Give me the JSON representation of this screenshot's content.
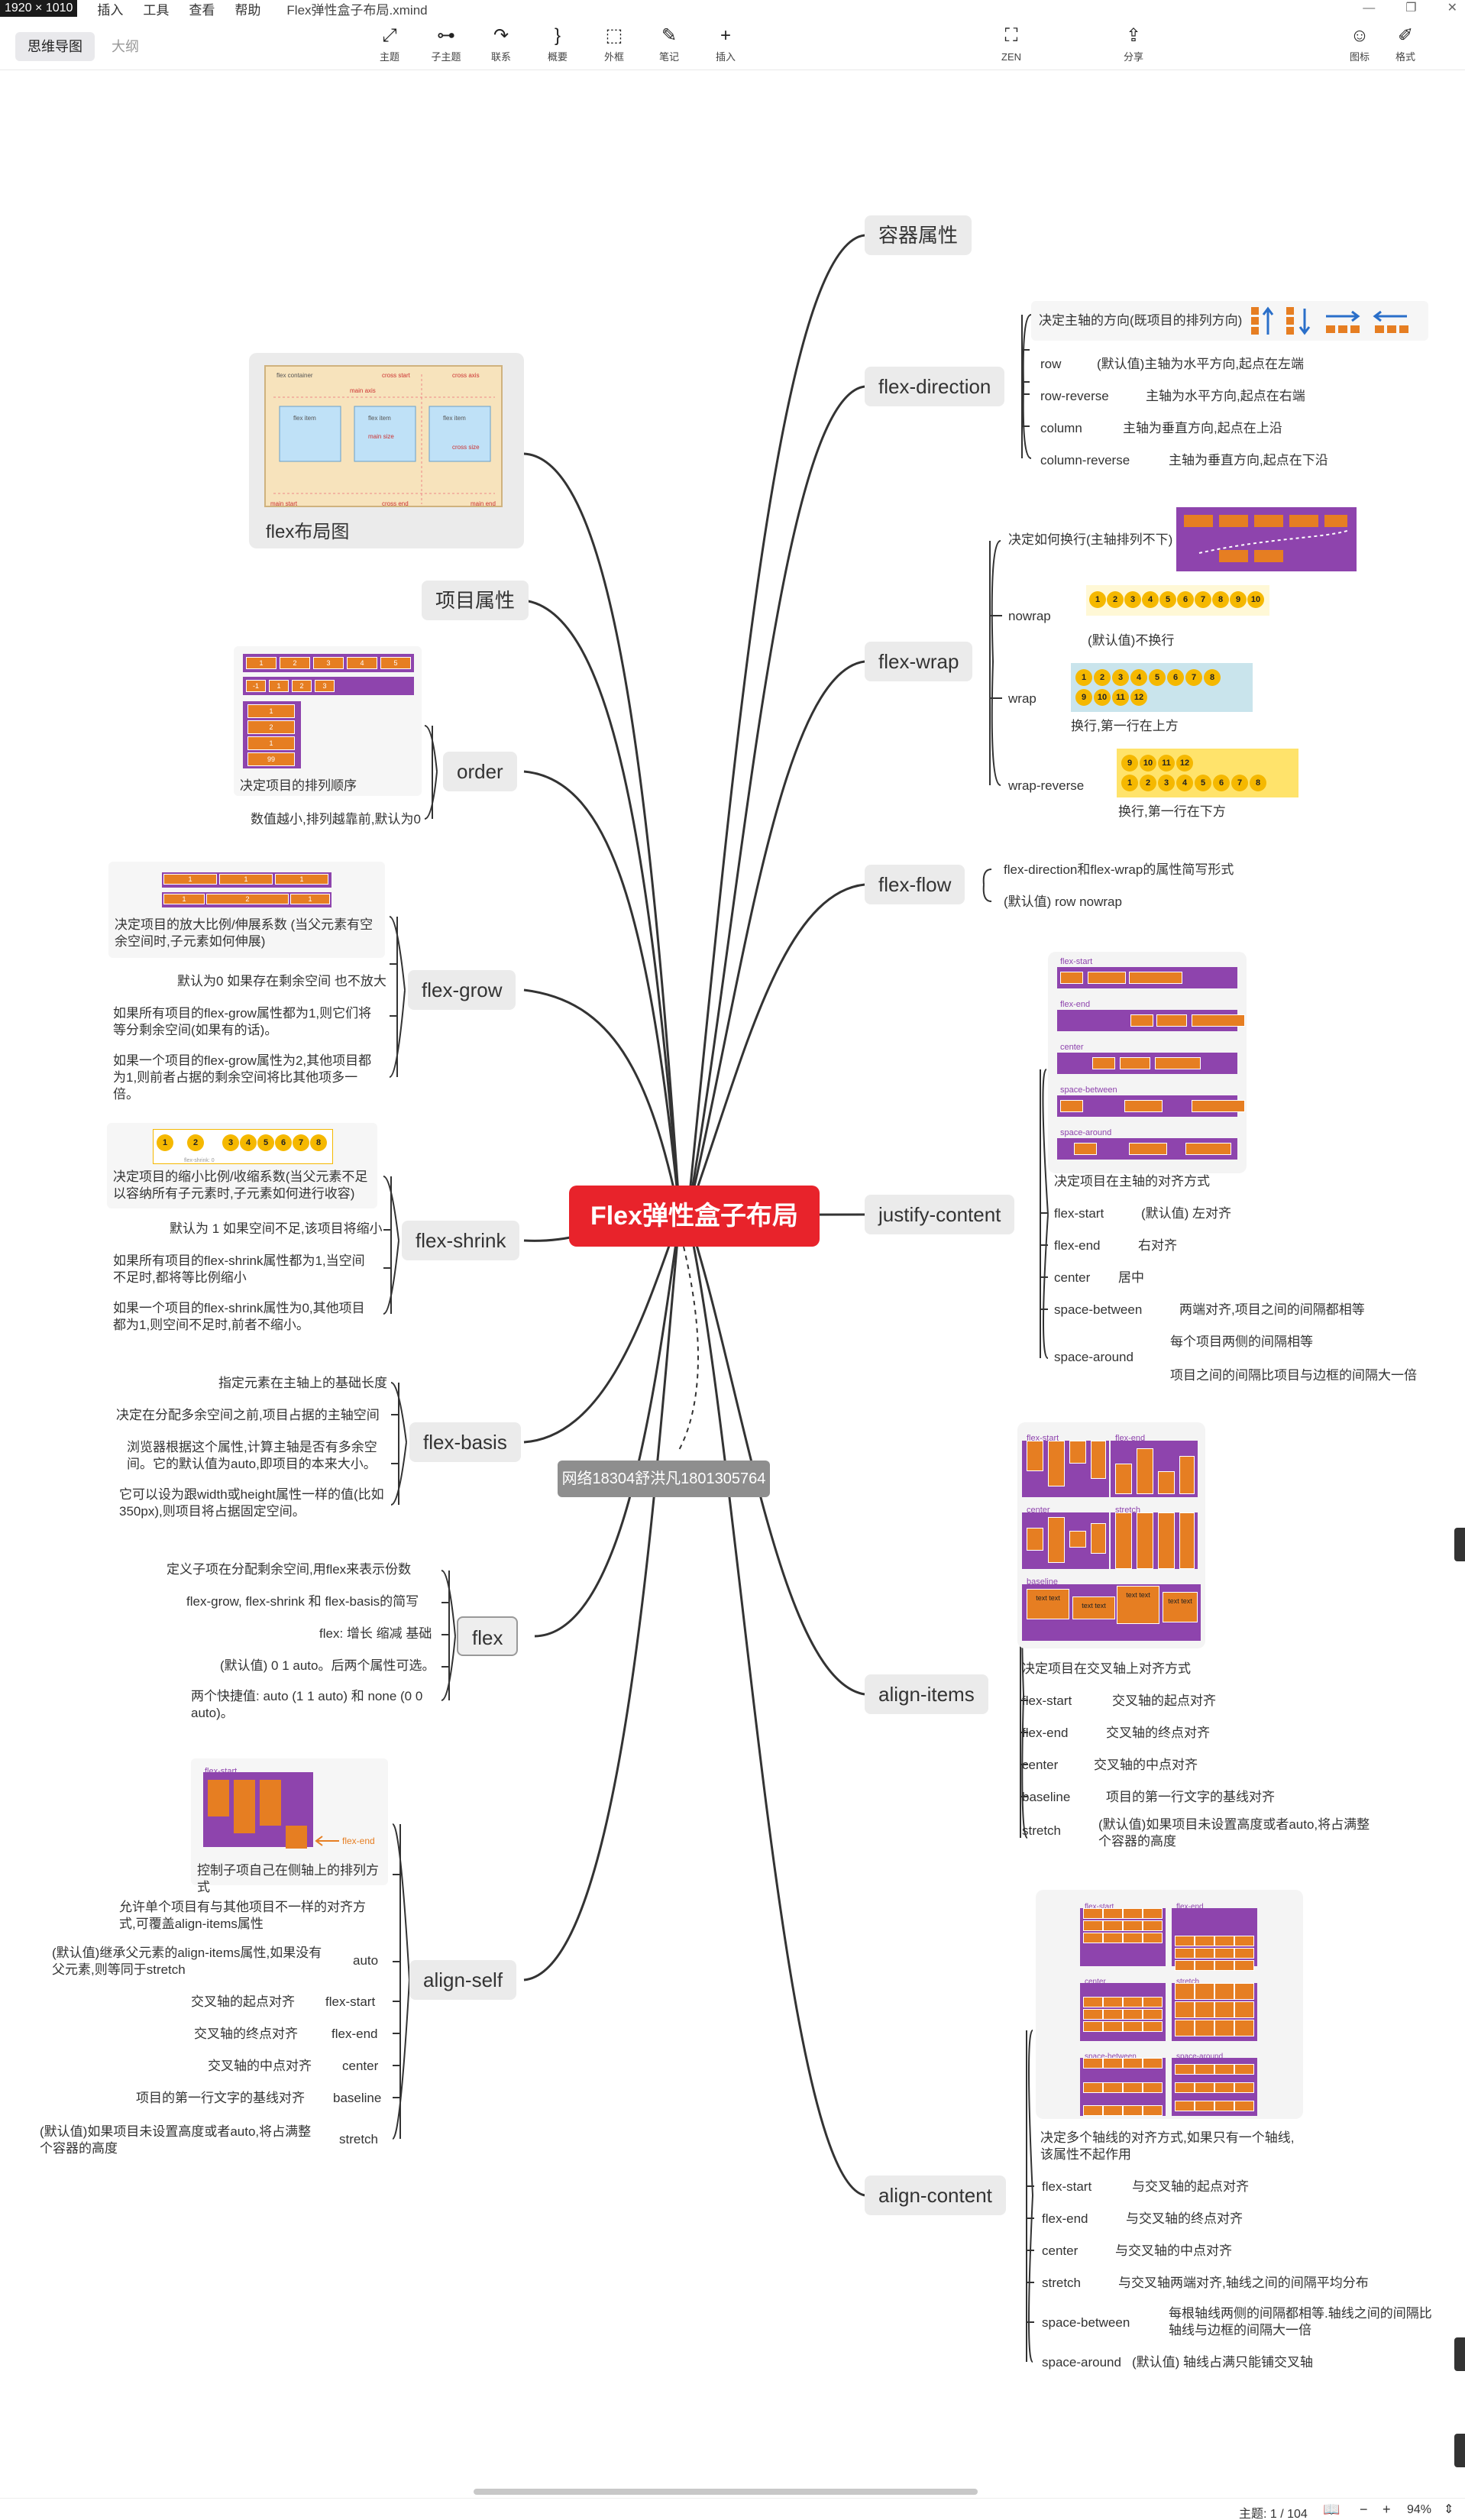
{
  "window": {
    "resolution": "1920 × 1010",
    "file_name": "Flex弹性盒子布局.xmind",
    "menus": [
      "插入",
      "工具",
      "查看",
      "帮助"
    ],
    "controls": [
      "—",
      "❐",
      "✕"
    ]
  },
  "toolbar": {
    "view_tabs": [
      "思维导图",
      "大纲"
    ],
    "tools": [
      {
        "name": "topic",
        "label": "主题",
        "icon": "⤢"
      },
      {
        "name": "subtopic",
        "label": "子主题",
        "icon": "⊶"
      },
      {
        "name": "relation",
        "label": "联系",
        "icon": "↷"
      },
      {
        "name": "summary",
        "label": "概要",
        "icon": "}"
      },
      {
        "name": "boundary",
        "label": "外框",
        "icon": "⬚"
      },
      {
        "name": "note",
        "label": "笔记",
        "icon": "✎"
      },
      {
        "name": "insert",
        "label": "插入",
        "icon": "+"
      },
      {
        "name": "zen",
        "label": "ZEN",
        "icon": "⛶"
      },
      {
        "name": "share",
        "label": "分享",
        "icon": "⇪"
      },
      {
        "name": "icon",
        "label": "图标",
        "icon": "☺"
      },
      {
        "name": "format",
        "label": "格式",
        "icon": "✐"
      }
    ]
  },
  "mindmap": {
    "central": "Flex弹性盒子布局",
    "watermark": "网络18304舒洪凡1801305764",
    "right": {
      "container_title": "容器属性",
      "flex_direction": {
        "title": "flex-direction",
        "desc": "决定主轴的方向(既项目的排列方向)",
        "items": [
          [
            "row",
            "(默认值)主轴为水平方向,起点在左端"
          ],
          [
            "row-reverse",
            "主轴为水平方向,起点在右端"
          ],
          [
            "column",
            "主轴为垂直方向,起点在上沿"
          ],
          [
            "column-reverse",
            "主轴为垂直方向,起点在下沿"
          ]
        ]
      },
      "flex_wrap": {
        "title": "flex-wrap",
        "desc": "决定如何换行(主轴排列不下)",
        "nowrap": "nowrap",
        "nowrap_note": "(默认值)不换行",
        "wrap": "wrap",
        "wrap_note": "换行,第一行在上方",
        "wrap_reverse": "wrap-reverse",
        "wrap_reverse_note": "换行,第一行在下方",
        "balls": [
          "1",
          "2",
          "3",
          "4",
          "5",
          "6",
          "7",
          "8",
          "9",
          "10",
          "11",
          "12"
        ]
      },
      "flex_flow": {
        "title": "flex-flow",
        "items": [
          "flex-direction和flex-wrap的属性简写形式",
          "(默认值) row nowrap"
        ]
      },
      "justify_content": {
        "title": "justify-content",
        "img_labels": [
          "flex-start",
          "flex-end",
          "center",
          "space-between",
          "space-around"
        ],
        "desc": "决定项目在主轴的对齐方式",
        "items": [
          [
            "flex-start",
            "(默认值) 左对齐"
          ],
          [
            "flex-end",
            "右对齐"
          ],
          [
            "center",
            "居中"
          ],
          [
            "space-between",
            "两端对齐,项目之间的间隔都相等"
          ],
          [
            "space-around",
            ""
          ]
        ],
        "around_notes": [
          "每个项目两侧的间隔相等",
          "项目之间的间隔比项目与边框的间隔大一倍"
        ]
      },
      "align_items": {
        "title": "align-items",
        "img_labels": [
          "flex-start",
          "flex-end",
          "center",
          "stretch",
          "baseline"
        ],
        "text_samples": [
          "text text",
          "text text",
          "text text",
          "text text"
        ],
        "desc": "决定项目在交叉轴上对齐方式",
        "items": [
          [
            "flex-start",
            "交叉轴的起点对齐"
          ],
          [
            "flex-end",
            "交叉轴的终点对齐"
          ],
          [
            "center",
            "交叉轴的中点对齐"
          ],
          [
            "baseline",
            "项目的第一行文字的基线对齐"
          ],
          [
            "stretch",
            "(默认值)如果项目未设置高度或者auto,将占满整个容器的高度"
          ]
        ]
      },
      "align_content": {
        "title": "align-content",
        "img_labels": [
          "flex-start",
          "flex-end",
          "center",
          "stretch",
          "space-between",
          "space-around"
        ],
        "desc": "决定多个轴线的对齐方式,如果只有一个轴线,该属性不起作用",
        "items": [
          [
            "flex-start",
            "与交叉轴的起点对齐"
          ],
          [
            "flex-end",
            "与交叉轴的终点对齐"
          ],
          [
            "center",
            "与交叉轴的中点对齐"
          ],
          [
            "stretch",
            "与交叉轴两端对齐,轴线之间的间隔平均分布"
          ],
          [
            "space-between",
            "每根轴线两侧的间隔都相等.轴线之间的间隔比轴线与边框的间隔大一倍"
          ],
          [
            "space-around",
            "(默认值) 轴线占满只能铺交叉轴"
          ]
        ]
      }
    },
    "left": {
      "flex_layout": {
        "title": "flex布局图",
        "diagram_labels": [
          "flex container",
          "main start",
          "main axis",
          "main end",
          "cross start",
          "cross end",
          "cross axis",
          "flex item",
          "flex item",
          "flex item",
          "main size",
          "cross size"
        ]
      },
      "item_title": "项目属性",
      "order": {
        "title": "order",
        "items": [
          "决定项目的排列顺序",
          "数值越小,排列越靠前,默认为0"
        ],
        "blocks": [
          "1",
          "2",
          "3",
          "4",
          "5",
          "-1",
          "1",
          "2",
          "3",
          "1",
          "2",
          "99"
        ]
      },
      "flex_grow": {
        "title": "flex-grow",
        "blocks": [
          "1",
          "1",
          "1",
          "1",
          "2",
          "1"
        ],
        "items": [
          "决定项目的放大比例/伸展系数 (当父元素有空余空间时,子元素如何伸展)",
          "默认为0 如果存在剩余空间 也不放大",
          "如果所有项目的flex-grow属性都为1,则它们将等分剩余空间(如果有的话)。",
          "如果一个项目的flex-grow属性为2,其他项目都为1,则前者占据的剩余空间将比其他项多一倍。"
        ]
      },
      "flex_shrink": {
        "title": "flex-shrink",
        "shrink_note": "flex-shrink: 0",
        "items": [
          "决定项目的缩小比例/收缩系数(当父元素不足以容纳所有子元素时,子元素如何进行收容)",
          "默认为 1 如果空间不足,该项目将缩小",
          "如果所有项目的flex-shrink属性都为1,当空间不足时,都将等比例缩小",
          "如果一个项目的flex-shrink属性为0,其他项目都为1,则空间不足时,前者不缩小。"
        ]
      },
      "flex_basis": {
        "title": "flex-basis",
        "items": [
          "指定元素在主轴上的基础长度",
          "决定在分配多余空间之前,项目占据的主轴空间",
          "浏览器根据这个属性,计算主轴是否有多余空间。它的默认值为auto,即项目的本来大小。",
          "它可以设为跟width或height属性一样的值(比如350px),则项目将占据固定空间。"
        ]
      },
      "flex": {
        "title": "flex",
        "items": [
          "定义子项在分配剩余空间,用flex来表示份数",
          "flex-grow, flex-shrink 和 flex-basis的简写",
          "flex: 增长 缩减 基础",
          "(默认值) 0 1 auto。后两个属性可选。",
          "两个快捷值: auto (1 1 auto) 和 none (0 0 auto)。"
        ]
      },
      "align_self": {
        "title": "align-self",
        "img_labels": [
          "flex-start",
          "flex-end"
        ],
        "desc": "控制子项自己在侧轴上的排列方式",
        "note": "允许单个项目有与其他项目不一样的对齐方式,可覆盖align-items属性",
        "items": [
          [
            "auto",
            "(默认值)继承父元素的align-items属性,如果没有父元素,则等同于stretch"
          ],
          [
            "flex-start",
            "交叉轴的起点对齐"
          ],
          [
            "flex-end",
            "交叉轴的终点对齐"
          ],
          [
            "center",
            "交叉轴的中点对齐"
          ],
          [
            "baseline",
            "项目的第一行文字的基线对齐"
          ],
          [
            "stretch",
            "(默认值)如果项目未设置高度或者auto,将占满整个容器的高度"
          ]
        ]
      }
    }
  },
  "status": {
    "topics": "主题: 1 / 104",
    "zoom": "94%",
    "icons": [
      "book-icon",
      "zoom-out",
      "zoom-in"
    ]
  },
  "colors": {
    "central": "#e8232b",
    "purple": "#8e44ad",
    "orange": "#e67e22",
    "yellow": "#f5b800",
    "node_bg": "#ebebeb"
  }
}
